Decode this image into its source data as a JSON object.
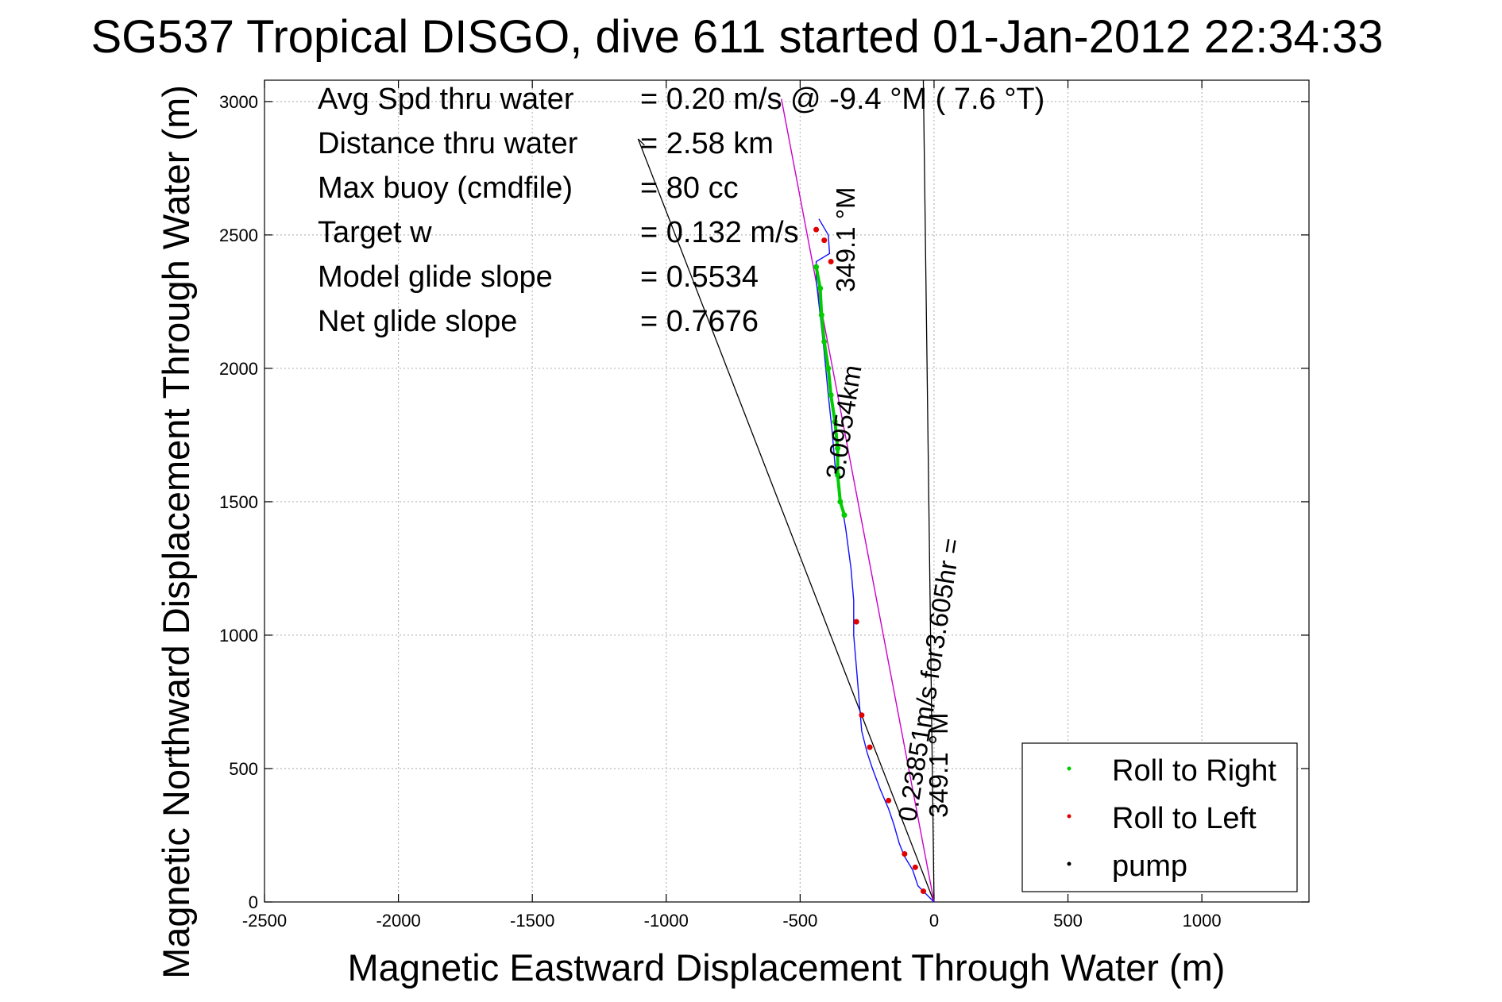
{
  "chart_data": {
    "type": "line",
    "title": "SG537 Tropical DISGO, dive 611 started 01-Jan-2012 22:34:33",
    "xlabel": "Magnetic Eastward Displacement Through Water (m)",
    "ylabel": "Magnetic Northward Displacement Through Water (m)",
    "xlim": [
      -2500,
      1400
    ],
    "ylim": [
      0,
      3080
    ],
    "x_ticks": [
      -2500,
      -2000,
      -1500,
      -1000,
      -500,
      0,
      500,
      1000
    ],
    "x_tick_labels": [
      "-2500",
      "-2000",
      "-1500",
      "-1000",
      "-500",
      "0",
      "500",
      "1000"
    ],
    "y_ticks": [
      0,
      500,
      1000,
      1500,
      2000,
      2500,
      3000
    ],
    "y_tick_labels": [
      "0",
      "500",
      "1000",
      "1500",
      "2000",
      "2500",
      "3000"
    ],
    "grid": true,
    "legend_placement": "bottom-right",
    "stats": [
      {
        "label": "Avg Spd thru water",
        "value": "=  0.20 m/s @  -9.4 °M (  7.6 °T)"
      },
      {
        "label": "Distance thru water",
        "value": "=  2.58 km"
      },
      {
        "label": "Max buoy (cmdfile)",
        "value": "= 80 cc"
      },
      {
        "label": "Target w",
        "value": "= 0.132 m/s"
      },
      {
        "label": "Model glide slope",
        "value": "= 0.5534"
      },
      {
        "label": "Net glide slope",
        "value": "= 0.7676"
      }
    ],
    "annotations": [
      "349.1 °M",
      "3.0954km",
      "0.23851m/s for3.605hr =",
      "349.1 °M"
    ],
    "series": [
      {
        "name": "Roll to Right",
        "color": "#00cc00",
        "points": [
          [
            -440,
            2380
          ],
          [
            -425,
            2300
          ],
          [
            -420,
            2200
          ],
          [
            -410,
            2100
          ],
          [
            -395,
            2000
          ],
          [
            -385,
            1900
          ],
          [
            -370,
            1800
          ],
          [
            -360,
            1700
          ],
          [
            -360,
            1600
          ],
          [
            -350,
            1500
          ],
          [
            -335,
            1450
          ]
        ]
      },
      {
        "name": "Roll to Left",
        "color": "#e00000",
        "points": [
          [
            -440,
            2520
          ],
          [
            -410,
            2480
          ],
          [
            -385,
            2400
          ],
          [
            -290,
            1050
          ],
          [
            -270,
            700
          ],
          [
            -240,
            580
          ],
          [
            -170,
            380
          ],
          [
            -110,
            180
          ],
          [
            -70,
            130
          ],
          [
            -40,
            40
          ]
        ]
      },
      {
        "name": "pump",
        "color": "#000000",
        "points": []
      }
    ],
    "track": [
      [
        0,
        0
      ],
      [
        -30,
        30
      ],
      [
        -60,
        60
      ],
      [
        -80,
        120
      ],
      [
        -110,
        170
      ],
      [
        -130,
        220
      ],
      [
        -150,
        290
      ],
      [
        -170,
        350
      ],
      [
        -200,
        420
      ],
      [
        -230,
        500
      ],
      [
        -250,
        560
      ],
      [
        -270,
        640
      ],
      [
        -280,
        760
      ],
      [
        -290,
        880
      ],
      [
        -300,
        1000
      ],
      [
        -300,
        1130
      ],
      [
        -310,
        1250
      ],
      [
        -330,
        1400
      ],
      [
        -350,
        1520
      ],
      [
        -370,
        1640
      ],
      [
        -380,
        1760
      ],
      [
        -395,
        1900
      ],
      [
        -410,
        2060
      ],
      [
        -425,
        2200
      ],
      [
        -440,
        2330
      ],
      [
        -440,
        2400
      ],
      [
        -390,
        2430
      ],
      [
        -395,
        2500
      ],
      [
        -430,
        2560
      ]
    ],
    "heading_line": [
      [
        0,
        0
      ],
      [
        -570,
        3010
      ]
    ],
    "model_lines": [
      [
        [
          0,
          0
        ],
        [
          -1105,
          2860
        ]
      ],
      [
        [
          0,
          0
        ],
        [
          -40,
          3080
        ]
      ]
    ]
  },
  "legend": {
    "items": [
      {
        "label": "Roll to Right",
        "color": "#00cc00"
      },
      {
        "label": "Roll to Left",
        "color": "#e00000"
      },
      {
        "label": "pump",
        "color": "#000000"
      }
    ]
  }
}
